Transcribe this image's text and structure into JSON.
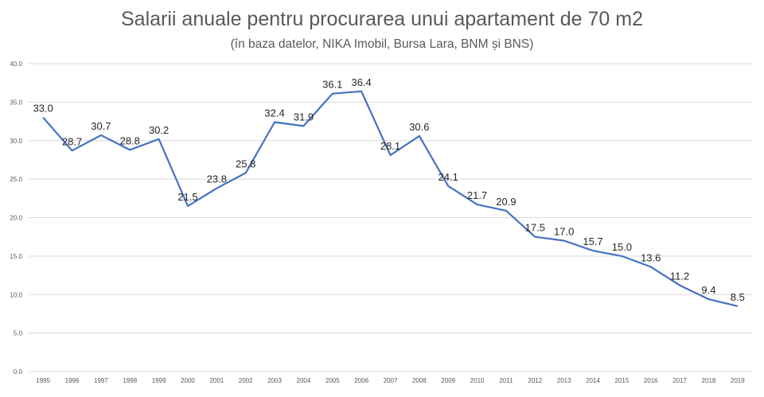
{
  "chart_data": {
    "type": "line",
    "title": "Salarii anuale pentru procurarea unui apartament de 70 m2",
    "subtitle": "(în baza datelor, NIKA Imobil, Bursa Lara, BNM și BNS)",
    "categories": [
      "1995",
      "1996",
      "1997",
      "1998",
      "1999",
      "2000",
      "2001",
      "2002",
      "2003",
      "2004",
      "2005",
      "2006",
      "2007",
      "2008",
      "2009",
      "2010",
      "2011",
      "2012",
      "2013",
      "2014",
      "2015",
      "2016",
      "2017",
      "2018",
      "2019"
    ],
    "series": [
      {
        "values": [
          33.0,
          28.7,
          30.7,
          28.8,
          30.2,
          21.5,
          23.8,
          25.8,
          32.4,
          31.9,
          36.1,
          36.4,
          28.1,
          30.6,
          24.1,
          21.7,
          20.9,
          17.5,
          17.0,
          15.7,
          15.0,
          13.6,
          11.2,
          9.4,
          8.5
        ],
        "labels": [
          "33.0",
          "28.7",
          "30.7",
          "28.8",
          "30.2",
          "21.5",
          "23.8",
          "25.8",
          "32.4",
          "31.9",
          "36.1",
          "36.4",
          "28.1",
          "30.6",
          "24.1",
          "21.7",
          "20.9",
          "17.5",
          "17.0",
          "15.7",
          "15.0",
          "13.6",
          "11.2",
          "9.4",
          "8.5"
        ],
        "color": "#4472c4"
      }
    ],
    "ylim": [
      0,
      40
    ],
    "yticks": [
      "0.0",
      "5.0",
      "10.0",
      "15.0",
      "20.0",
      "25.0",
      "30.0",
      "35.0",
      "40.0"
    ],
    "grid": true,
    "gridColor": "#d9d9d9"
  }
}
